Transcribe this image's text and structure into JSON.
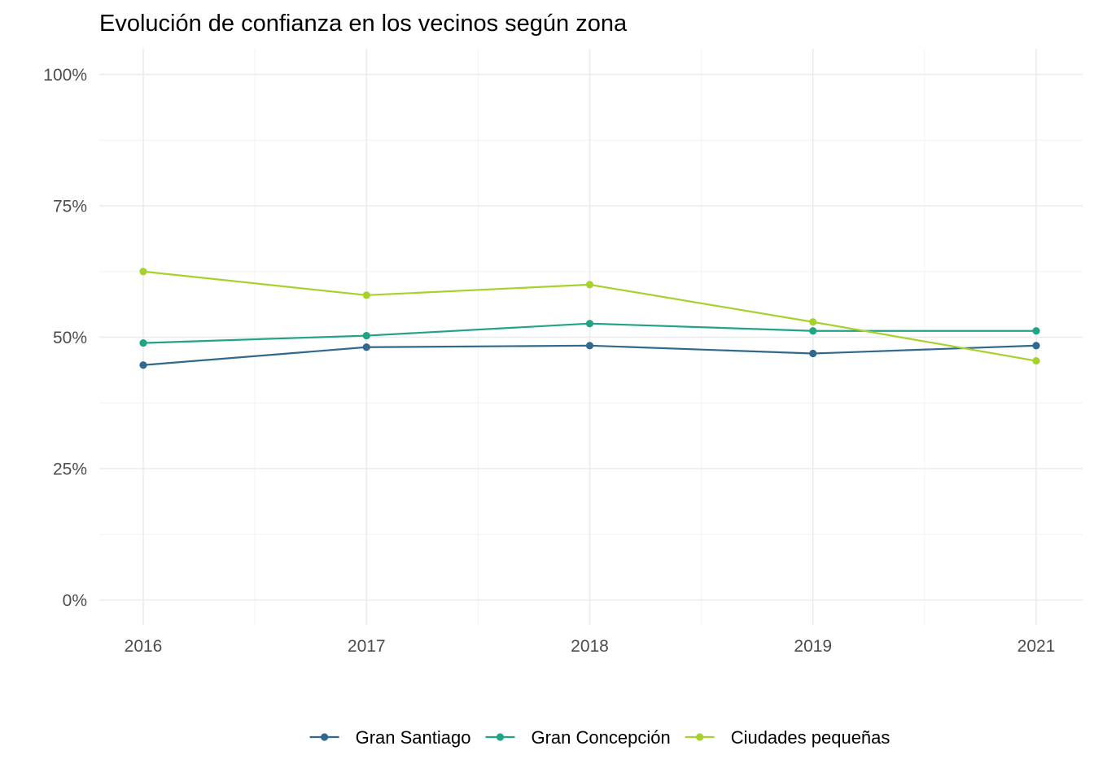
{
  "chart_data": {
    "type": "line",
    "title": "Evolución de confianza en los vecinos según zona",
    "xlabel": "",
    "ylabel": "",
    "categories": [
      "2016",
      "2017",
      "2018",
      "2019",
      "2021"
    ],
    "x_positions": [
      2016,
      2017,
      2018,
      2019,
      2020
    ],
    "y_ticks": [
      {
        "value": 0,
        "label": "0%"
      },
      {
        "value": 25,
        "label": "25%"
      },
      {
        "value": 50,
        "label": "50%"
      },
      {
        "value": 75,
        "label": "75%"
      },
      {
        "value": 100,
        "label": "100%"
      }
    ],
    "ylim": [
      0,
      100
    ],
    "grid": true,
    "legend_position": "bottom",
    "series": [
      {
        "name": "Gran Santiago",
        "color": "#31688e",
        "values": [
          44.7,
          48.1,
          48.4,
          46.9,
          48.4
        ]
      },
      {
        "name": "Gran Concepción",
        "color": "#21a386",
        "values": [
          48.9,
          50.3,
          52.6,
          51.2,
          51.2
        ]
      },
      {
        "name": "Ciudades pequeñas",
        "color": "#a7d12b",
        "values": [
          62.5,
          58.0,
          60.0,
          52.9,
          45.5
        ]
      }
    ]
  }
}
